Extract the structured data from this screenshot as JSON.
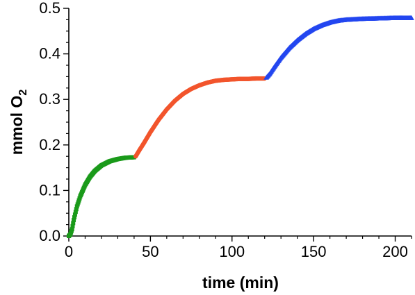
{
  "chart_data": {
    "type": "scatter",
    "title": "",
    "xlabel": "time (min)",
    "ylabel": {
      "main": "mmol O",
      "subscript": "2"
    },
    "xlim": [
      0,
      210
    ],
    "ylim": [
      0,
      0.5
    ],
    "xticks": [
      0,
      50,
      100,
      150,
      200
    ],
    "yticks": [
      0.0,
      0.1,
      0.2,
      0.3,
      0.4,
      0.5
    ],
    "xtick_labels": [
      "0",
      "50",
      "100",
      "150",
      "200"
    ],
    "ytick_labels": [
      "0.0",
      "0.1",
      "0.2",
      "0.3",
      "0.4",
      "0.5"
    ],
    "grid": false,
    "legend": "none",
    "series": [
      {
        "color": "#1a9a1a",
        "marker": "square",
        "x": [
          0,
          1,
          2,
          3,
          5,
          7,
          10,
          13,
          16,
          20,
          25,
          30,
          35,
          40
        ],
        "y": [
          0.0,
          0.004,
          0.015,
          0.035,
          0.065,
          0.087,
          0.112,
          0.13,
          0.143,
          0.155,
          0.164,
          0.169,
          0.172,
          0.173
        ]
      },
      {
        "color": "#f2552c",
        "marker": "circle",
        "x": [
          41,
          43,
          46,
          50,
          55,
          60,
          65,
          70,
          75,
          80,
          85,
          90,
          95,
          100,
          105,
          110,
          115,
          120
        ],
        "y": [
          0.175,
          0.187,
          0.204,
          0.228,
          0.255,
          0.278,
          0.297,
          0.312,
          0.323,
          0.331,
          0.337,
          0.341,
          0.343,
          0.344,
          0.345,
          0.345,
          0.346,
          0.346
        ]
      },
      {
        "color": "#2346f0",
        "marker": "triangle",
        "x": [
          121,
          123,
          126,
          130,
          135,
          140,
          145,
          150,
          155,
          160,
          165,
          170,
          180,
          190,
          200,
          210
        ],
        "y": [
          0.348,
          0.356,
          0.372,
          0.392,
          0.413,
          0.43,
          0.444,
          0.455,
          0.463,
          0.469,
          0.473,
          0.475,
          0.477,
          0.478,
          0.479,
          0.479
        ]
      }
    ]
  }
}
